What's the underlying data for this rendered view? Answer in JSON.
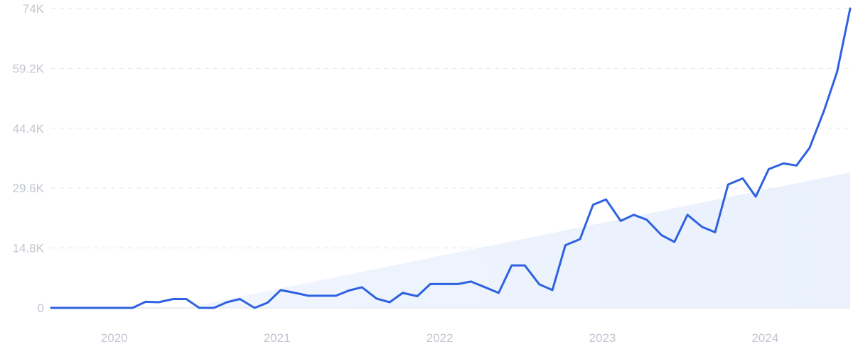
{
  "chart_data": {
    "type": "line",
    "title": "",
    "xlabel": "",
    "ylabel": "",
    "ylim": [
      0,
      74000
    ],
    "xlim": [
      2019.63,
      2024.54
    ],
    "y_ticks": [
      0,
      14800,
      29600,
      44400,
      59200,
      74000
    ],
    "y_tick_labels": [
      "0",
      "14.8K",
      "29.6K",
      "44.4K",
      "59.2K",
      "74K"
    ],
    "x_ticks": [
      2020,
      2021,
      2022,
      2023,
      2024
    ],
    "x_tick_labels": [
      "2020",
      "2021",
      "2022",
      "2023",
      "2024"
    ],
    "grid": true,
    "colors": {
      "line": "#2f62e0",
      "trend_fill": "#e8f0fc"
    },
    "trend": {
      "x": [
        2020.45,
        2024.54
      ],
      "y": [
        0,
        33500
      ]
    },
    "series": [
      {
        "x": [
          2019.63,
          2019.71,
          2019.79,
          2019.88,
          2019.96,
          2020.04,
          2020.13,
          2020.21,
          2020.29,
          2020.38,
          2020.46,
          2020.54,
          2020.63,
          2020.71,
          2020.79,
          2020.88,
          2020.96,
          2021.04,
          2021.13,
          2021.21,
          2021.29,
          2021.38,
          2021.46,
          2021.54,
          2021.63,
          2021.71,
          2021.79,
          2021.88,
          2021.96,
          2022.04,
          2022.13,
          2022.21,
          2022.29,
          2022.38,
          2022.46,
          2022.54,
          2022.63,
          2022.71,
          2022.79,
          2022.88,
          2022.96,
          2023.04,
          2023.13,
          2023.21,
          2023.29,
          2023.38,
          2023.46,
          2023.54,
          2023.63,
          2023.71,
          2023.79,
          2023.88,
          2023.96,
          2024.04,
          2024.13,
          2024.21,
          2024.29,
          2024.38,
          2024.46,
          2024.54
        ],
        "values": [
          0,
          0,
          0,
          0,
          0,
          0,
          0,
          1500,
          1400,
          2200,
          2200,
          0,
          0,
          1400,
          2200,
          0,
          1300,
          4400,
          3700,
          3000,
          3000,
          3000,
          4300,
          5100,
          2300,
          1400,
          3700,
          2900,
          5900,
          5900,
          5900,
          6500,
          5200,
          3700,
          10500,
          10500,
          5800,
          4400,
          15500,
          17000,
          25500,
          26800,
          21500,
          23000,
          21800,
          18000,
          16300,
          23000,
          20000,
          18700,
          30500,
          32000,
          27500,
          34300,
          35700,
          35200,
          39500,
          48800,
          58400,
          74000
        ]
      }
    ]
  }
}
